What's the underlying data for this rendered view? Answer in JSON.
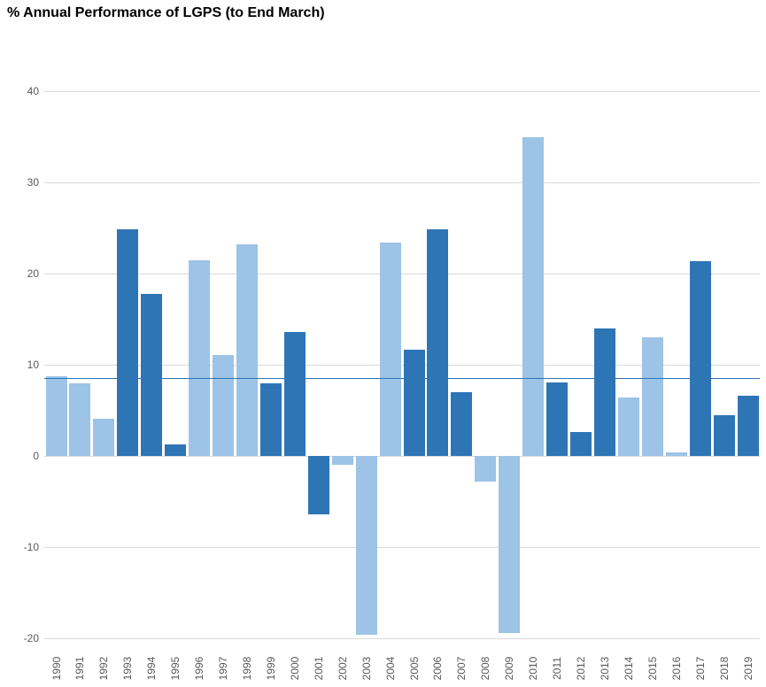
{
  "title": "% Annual Performance of LGPS (to End March)",
  "colors": {
    "bar_light": "#9dc3e6",
    "bar_dark": "#2e75b6",
    "gridline": "#d9d9d9",
    "axis_text": "#595959",
    "average_line": "#2e75b6",
    "title_text": "#000000",
    "background": "#ffffff"
  },
  "chart_data": {
    "type": "bar",
    "title": "% Annual Performance of LGPS (to End March)",
    "xlabel": "",
    "ylabel": "",
    "ylim": [
      -20,
      40
    ],
    "yticks": [
      40,
      30,
      20,
      10,
      0,
      -10,
      -20
    ],
    "grid": true,
    "legend_position": "none",
    "average_line_value": 8.5,
    "categories": [
      "1990",
      "1991",
      "1992",
      "1993",
      "1994",
      "1995",
      "1996",
      "1997",
      "1998",
      "1999",
      "2000",
      "2001",
      "2002",
      "2003",
      "2004",
      "2005",
      "2006",
      "2007",
      "2008",
      "2009",
      "2010",
      "2011",
      "2012",
      "2013",
      "2014",
      "2015",
      "2016",
      "2017",
      "2018",
      "2019"
    ],
    "values": [
      8.7,
      8.0,
      4.1,
      24.9,
      17.8,
      1.3,
      21.5,
      11.1,
      23.2,
      8.0,
      13.6,
      -6.4,
      -1.0,
      -19.6,
      23.4,
      11.7,
      24.9,
      7.0,
      -2.8,
      -19.4,
      35.0,
      8.1,
      2.6,
      14.0,
      6.4,
      13.0,
      0.4,
      21.4,
      4.5,
      6.6
    ],
    "bar_shades": [
      "light",
      "light",
      "light",
      "dark",
      "dark",
      "dark",
      "light",
      "light",
      "light",
      "dark",
      "dark",
      "dark",
      "light",
      "light",
      "light",
      "dark",
      "dark",
      "dark",
      "light",
      "light",
      "light",
      "dark",
      "dark",
      "dark",
      "light",
      "light",
      "light",
      "dark",
      "dark",
      "dark"
    ]
  }
}
